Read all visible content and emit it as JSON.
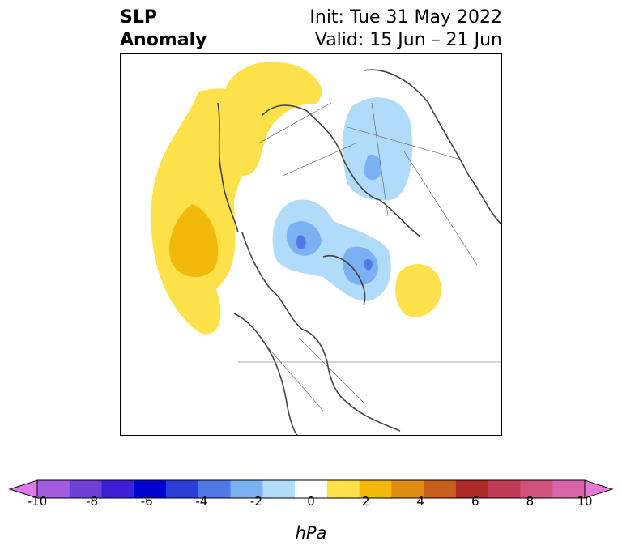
{
  "title": {
    "left_line1": "SLP",
    "left_line2": "Anomaly",
    "right_line1": "Init: Tue 31 May 2022",
    "right_line2": "Valid: 15 Jun – 21 Jun"
  },
  "map": {
    "projection": "polar stereographic (north)",
    "anomalies": [
      {
        "region": "north-pacific-alaska",
        "sign": "positive",
        "max_level": 3
      },
      {
        "region": "siberia-north",
        "sign": "positive",
        "max_level": 1
      },
      {
        "region": "arctic-canada-greenland",
        "sign": "negative",
        "max_level": -5
      },
      {
        "region": "northern-europe-scandinavia",
        "sign": "negative",
        "max_level": -3
      },
      {
        "region": "north-atlantic",
        "sign": "positive",
        "max_level": 1
      }
    ]
  },
  "colorbar": {
    "unit": "hPa",
    "tick_labels": [
      "-10",
      "-8",
      "-6",
      "-4",
      "-2",
      "0",
      "2",
      "4",
      "6",
      "8",
      "10"
    ],
    "colors": [
      "#d97ae8",
      "#a25ce0",
      "#6f40d8",
      "#3e1fd6",
      "#0000d0",
      "#2b3ed9",
      "#5078e6",
      "#7bb0f2",
      "#b0dcfa",
      "#ffffff",
      "#fde14a",
      "#f2b90a",
      "#df8c10",
      "#c75e1c",
      "#ad2a27",
      "#c23b56",
      "#d0527d",
      "#da64a8",
      "#e57ad6"
    ],
    "extend": "both"
  }
}
